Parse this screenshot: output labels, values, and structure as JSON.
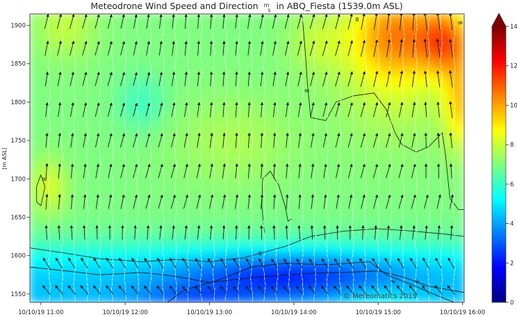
{
  "chart_data": {
    "type": "heatmap",
    "title_prefix": "Meteodrone Wind Speed and Direction",
    "title_unit_num": "m",
    "title_unit_den": "s",
    "title_suffix": "in ABQ_Fiesta (1539.0m ASL)",
    "ylabel": "[m ASL]",
    "xlabel": "",
    "x_ticks": [
      "10/10/19 11:00",
      "10/10/19 12:00",
      "10/10/19 13:00",
      "10/10/19 14:00",
      "10/10/19 15:00",
      "10/10/19 16:00"
    ],
    "xlim_hours": [
      10.87,
      16.02
    ],
    "y_ticks": [
      1550,
      1600,
      1650,
      1700,
      1750,
      1800,
      1850,
      1900
    ],
    "ylim": [
      1539,
      1915
    ],
    "colorbar": {
      "ticks": [
        0,
        2,
        4,
        6,
        8,
        10,
        12,
        14
      ],
      "min": 0,
      "max": 14,
      "extend": "max"
    },
    "contour_labels": [
      "8",
      "8",
      "8",
      "8",
      "6",
      "6",
      "4"
    ],
    "profile_times_hours": [
      11.1,
      11.25,
      11.4,
      11.55,
      11.7,
      11.85,
      12.0,
      12.15,
      12.3,
      12.45,
      12.6,
      12.75,
      12.9,
      13.05,
      13.2,
      13.35,
      13.5,
      13.65,
      13.8,
      13.95,
      14.1,
      14.25,
      14.4,
      14.55,
      14.7,
      14.85,
      15.0,
      15.15,
      15.3,
      15.45,
      15.6,
      15.75,
      15.9
    ],
    "wind_levels_m": [
      1555,
      1590,
      1630,
      1670,
      1710,
      1750,
      1790,
      1830,
      1870,
      1905
    ],
    "wind_direction_note": "arrows point mostly north to north-northeast, northwest near the ground",
    "watermark": "© Meteomatics 2019"
  },
  "colors": {
    "scale": [
      "#00007f",
      "#0000ff",
      "#007fff",
      "#00ffff",
      "#7fff7f",
      "#ffff00",
      "#ff7f00",
      "#ff0000",
      "#7f0000"
    ],
    "background": "#ffffff",
    "arrow": "#1a1a1a",
    "profile_line": "#ffffff"
  }
}
